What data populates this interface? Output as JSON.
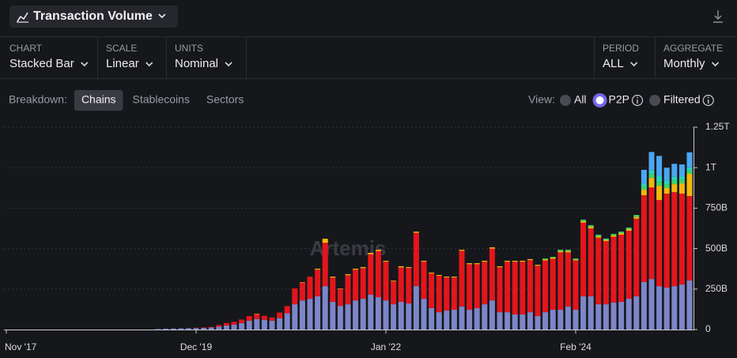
{
  "header": {
    "title": "Transaction Volume"
  },
  "controls": [
    {
      "label": "CHART",
      "value": "Stacked Bar"
    },
    {
      "label": "SCALE",
      "value": "Linear"
    },
    {
      "label": "UNITS",
      "value": "Nominal"
    },
    {
      "label": "PERIOD",
      "value": "ALL"
    },
    {
      "label": "AGGREGATE",
      "value": "Monthly"
    }
  ],
  "breakdown": {
    "label": "Breakdown:",
    "tabs": [
      "Chains",
      "Stablecoins",
      "Sectors"
    ],
    "selected": 0
  },
  "view": {
    "label": "View:",
    "options": [
      "All",
      "P2P",
      "Filtered"
    ],
    "selected": 1
  },
  "watermark": "Artemis",
  "chart_data": {
    "type": "stacked_bar",
    "categories": [
      "Nov '17",
      null,
      null,
      null,
      null,
      null,
      null,
      null,
      null,
      null,
      null,
      null,
      null,
      null,
      null,
      null,
      null,
      null,
      null,
      null,
      null,
      null,
      null,
      null,
      null,
      "Dec '19",
      null,
      null,
      null,
      null,
      null,
      null,
      null,
      null,
      null,
      null,
      null,
      null,
      null,
      null,
      null,
      null,
      null,
      null,
      null,
      null,
      null,
      null,
      null,
      null,
      "Jan '22",
      null,
      null,
      null,
      null,
      null,
      null,
      null,
      null,
      null,
      null,
      null,
      null,
      null,
      null,
      null,
      null,
      null,
      null,
      null,
      null,
      null,
      null,
      null,
      null,
      "Feb '24",
      null,
      null,
      null,
      null,
      null,
      null,
      null,
      null,
      null,
      null,
      null,
      null,
      null,
      null,
      null
    ],
    "series": [
      {
        "color": "#7c86c8",
        "values": [
          0,
          0,
          0,
          0,
          0,
          0,
          0,
          0,
          0,
          0,
          0,
          0,
          0,
          0,
          0,
          0,
          0,
          0,
          0,
          0,
          3,
          5,
          6,
          7,
          8,
          9,
          10,
          12,
          18,
          25,
          30,
          40,
          55,
          65,
          60,
          55,
          70,
          100,
          156,
          180,
          190,
          205,
          268,
          171,
          146,
          156,
          180,
          190,
          215,
          200,
          180,
          156,
          171,
          161,
          268,
          190,
          132,
          107,
          117,
          122,
          142,
          122,
          132,
          156,
          180,
          107,
          107,
          93,
          93,
          107,
          83,
          107,
          122,
          122,
          142,
          122,
          205,
          205,
          156,
          156,
          166,
          171,
          190,
          205,
          293,
          312,
          268,
          259,
          268,
          278,
          303
        ]
      },
      {
        "color": "#e3161c",
        "values": [
          0,
          0,
          0,
          0,
          0,
          0,
          0,
          0,
          0,
          0,
          0,
          0,
          0,
          0,
          0,
          0,
          0,
          0,
          0,
          0,
          0,
          0,
          0,
          0,
          0,
          2,
          3,
          4,
          10,
          15,
          18,
          22,
          28,
          30,
          25,
          20,
          35,
          45,
          98,
          110,
          137,
          166,
          268,
          150,
          105,
          180,
          190,
          190,
          250,
          285,
          240,
          143,
          213,
          220,
          330,
          230,
          215,
          225,
          205,
          200,
          345,
          282,
          272,
          263,
          320,
          278,
          312,
          326,
          326,
          322,
          311,
          320,
          315,
          355,
          335,
          305,
          455,
          420,
          412,
          390,
          407,
          415,
          420,
          480,
          537,
          566,
          532,
          581,
          581,
          562,
          522
        ]
      },
      {
        "color": "#f2b70e",
        "values": [
          0,
          0,
          0,
          0,
          0,
          0,
          0,
          0,
          0,
          0,
          0,
          0,
          0,
          0,
          0,
          0,
          0,
          0,
          0,
          0,
          0,
          0,
          0,
          0,
          0,
          0,
          0,
          0,
          0,
          0,
          0,
          0,
          0,
          3,
          0,
          0,
          0,
          0,
          0,
          3,
          0,
          5,
          25,
          6,
          3,
          6,
          6,
          6,
          9,
          8,
          5,
          4,
          7,
          5,
          7,
          5,
          5,
          5,
          5,
          5,
          6,
          6,
          6,
          6,
          8,
          6,
          6,
          6,
          6,
          6,
          6,
          7,
          7,
          8,
          8,
          6,
          10,
          10,
          9,
          8,
          9,
          10,
          10,
          12,
          34,
          59,
          88,
          34,
          49,
          63,
          137
        ]
      },
      {
        "color": "#3fd46a",
        "values": [
          0,
          0,
          0,
          0,
          0,
          0,
          0,
          0,
          0,
          0,
          0,
          0,
          0,
          0,
          0,
          0,
          0,
          0,
          0,
          0,
          0,
          0,
          0,
          0,
          0,
          0,
          0,
          0,
          0,
          0,
          0,
          0,
          0,
          0,
          0,
          0,
          0,
          0,
          0,
          0,
          0,
          0,
          0,
          0,
          0,
          0,
          0,
          0,
          0,
          0,
          0,
          0,
          0,
          0,
          0,
          0,
          0,
          0,
          0,
          0,
          0,
          0,
          0,
          0,
          0,
          0,
          0,
          0,
          0,
          0,
          0,
          5,
          5,
          8,
          8,
          6,
          9,
          10,
          9,
          8,
          9,
          9,
          10,
          11,
          20,
          24,
          24,
          24,
          24,
          24,
          20
        ]
      },
      {
        "color": "#2fd0c0",
        "values": [
          0,
          0,
          0,
          0,
          0,
          0,
          0,
          0,
          0,
          0,
          0,
          0,
          0,
          0,
          0,
          0,
          0,
          0,
          0,
          0,
          0,
          0,
          0,
          0,
          0,
          0,
          0,
          0,
          0,
          0,
          0,
          0,
          0,
          0,
          0,
          0,
          0,
          0,
          0,
          0,
          0,
          0,
          0,
          0,
          0,
          0,
          0,
          0,
          0,
          0,
          0,
          0,
          0,
          0,
          0,
          0,
          0,
          0,
          0,
          0,
          0,
          0,
          0,
          0,
          0,
          0,
          0,
          0,
          0,
          0,
          0,
          0,
          0,
          0,
          0,
          0,
          0,
          0,
          0,
          0,
          0,
          0,
          0,
          0,
          20,
          24,
          39,
          24,
          24,
          20,
          20
        ]
      },
      {
        "color": "#4ba6f2",
        "values": [
          0,
          0,
          0,
          0,
          0,
          0,
          0,
          0,
          0,
          0,
          0,
          0,
          0,
          0,
          0,
          0,
          0,
          0,
          0,
          0,
          0,
          0,
          0,
          0,
          0,
          0,
          0,
          0,
          0,
          0,
          0,
          0,
          0,
          0,
          0,
          0,
          0,
          0,
          0,
          0,
          0,
          0,
          0,
          0,
          0,
          0,
          0,
          0,
          0,
          0,
          0,
          0,
          0,
          0,
          0,
          0,
          0,
          0,
          0,
          0,
          0,
          0,
          0,
          0,
          0,
          0,
          0,
          0,
          0,
          0,
          0,
          0,
          0,
          0,
          0,
          0,
          0,
          0,
          0,
          0,
          0,
          0,
          0,
          0,
          83,
          112,
          122,
          78,
          78,
          73,
          93
        ]
      }
    ],
    "ylim": [
      0,
      1250
    ],
    "yticks": [
      0,
      {
        "value": 250,
        "label": "250B"
      },
      {
        "value": 500,
        "label": "500B"
      },
      {
        "value": 750,
        "label": "750B"
      },
      {
        "value": 1000,
        "label": "1T"
      },
      {
        "value": 1250,
        "label": "1.25T"
      }
    ],
    "grid": true
  }
}
